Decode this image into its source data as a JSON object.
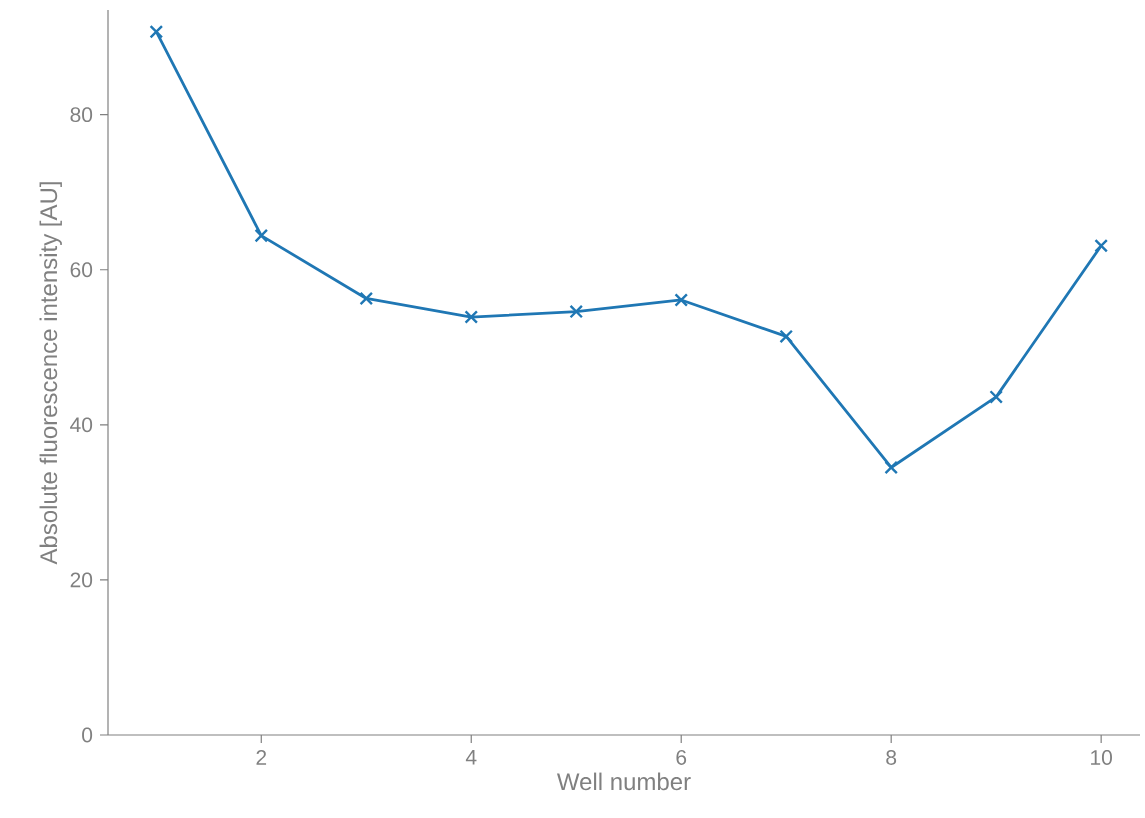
{
  "chart_data": {
    "type": "line",
    "xlabel": "Well number",
    "ylabel": "Absolute fluorescence intensity [AU]",
    "x": [
      1,
      2,
      3,
      4,
      5,
      6,
      7,
      8,
      9,
      10
    ],
    "series": [
      {
        "color": "#1f77b4",
        "values": [
          90.7,
          64.4,
          56.3,
          53.9,
          54.6,
          56.1,
          51.4,
          34.5,
          43.6,
          63.1
        ]
      }
    ],
    "xlim": [
      0.54,
      10.37
    ],
    "ylim": [
      0,
      93.5
    ],
    "xticks": [
      2,
      4,
      6,
      8,
      10
    ],
    "yticks": [
      0,
      20,
      40,
      60,
      80
    ],
    "marker": "cross",
    "line_style": "solid"
  }
}
